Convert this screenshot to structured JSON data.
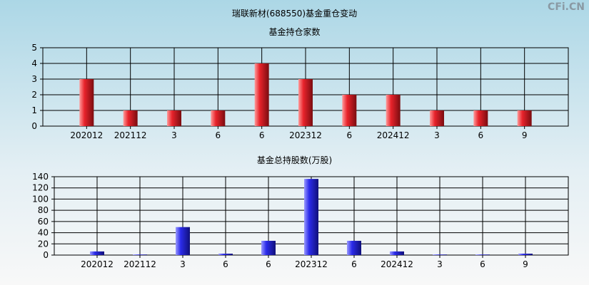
{
  "title": "瑞联新材(688550)基金重仓变动",
  "logo": "CFi.CN",
  "chart_data": [
    {
      "type": "bar",
      "title": "基金持仓家数",
      "categories": [
        "202012",
        "202112",
        "3",
        "6",
        "6",
        "202312",
        "6",
        "202412",
        "3",
        "6",
        "9"
      ],
      "values": [
        3,
        1,
        1,
        1,
        4,
        3,
        2,
        2,
        1,
        1,
        1
      ],
      "ylim": [
        0,
        5
      ],
      "yticks": [
        0,
        1,
        2,
        3,
        4,
        5
      ],
      "grid": true,
      "color": "#e8232b"
    },
    {
      "type": "bar",
      "title": "基金总持股数(万股)",
      "categories": [
        "202012",
        "202112",
        "3",
        "6",
        "6",
        "202312",
        "6",
        "202412",
        "3",
        "6",
        "9"
      ],
      "values": [
        6.5,
        1,
        50,
        2.5,
        25.5,
        136,
        25.5,
        6.5,
        1,
        1,
        2.5
      ],
      "ylim": [
        0,
        140
      ],
      "yticks": [
        0,
        20,
        40,
        60,
        80,
        100,
        120,
        140
      ],
      "grid": true,
      "color": "#2b2bea"
    }
  ]
}
